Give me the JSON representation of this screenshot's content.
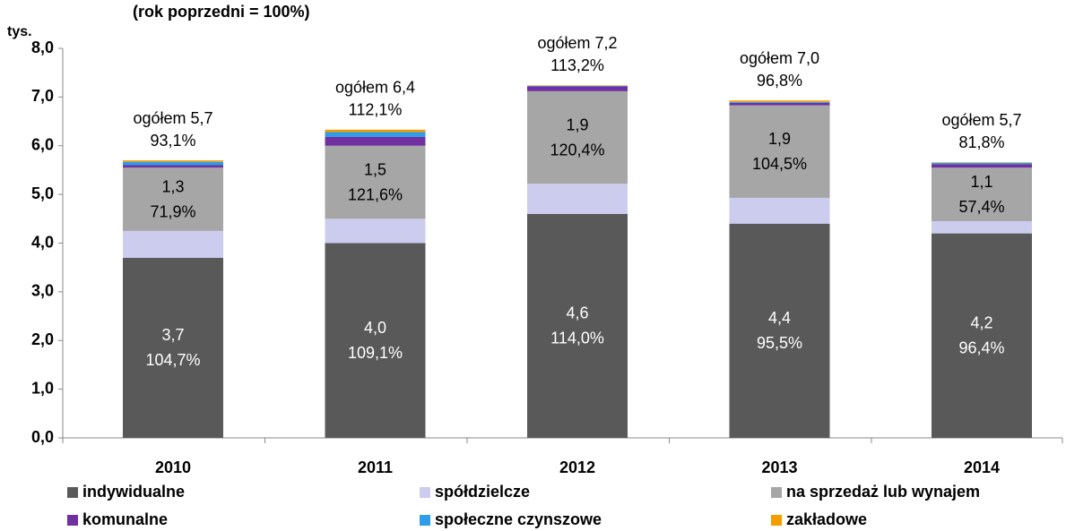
{
  "chart_data": {
    "type": "stacked_bar",
    "subtitle": "(rok poprzedni = 100%)",
    "y_label": "tys.",
    "categories": [
      "2010",
      "2011",
      "2012",
      "2013",
      "2014"
    ],
    "series": [
      {
        "name": "indywidualne",
        "color": "#595959",
        "values": [
          3.7,
          4.0,
          4.6,
          4.4,
          4.2
        ],
        "value_labels": [
          "3,7",
          "4,0",
          "4,6",
          "4,4",
          "4,2"
        ],
        "growth_labels": [
          "104,7%",
          "109,1%",
          "114,0%",
          "95,5%",
          "96,4%"
        ]
      },
      {
        "name": "spółdzielcze",
        "color": "#ccccee",
        "values": [
          0.55,
          0.5,
          0.62,
          0.53,
          0.25
        ]
      },
      {
        "name": "na sprzedaż lub wynajem",
        "color": "#a6a6a6",
        "values": [
          1.3,
          1.5,
          1.9,
          1.9,
          1.1
        ],
        "value_labels": [
          "1,3",
          "1,5",
          "1,9",
          "1,9",
          "1,1"
        ],
        "growth_labels": [
          "71,9%",
          "121,6%",
          "120,4%",
          "104,5%",
          "57,4%"
        ]
      },
      {
        "name": "komunalne",
        "color": "#7030a0",
        "values": [
          0.05,
          0.18,
          0.1,
          0.05,
          0.07
        ]
      },
      {
        "name": "społeczne czynszowe",
        "color": "#2e9ce8",
        "values": [
          0.07,
          0.1,
          0.01,
          0.02,
          0.03
        ]
      },
      {
        "name": "zakładowe",
        "color": "#f59c00",
        "values": [
          0.03,
          0.05,
          0.01,
          0.03,
          0.01
        ]
      }
    ],
    "total_labels": [
      "ogółem 5,7",
      "ogółem 6,4",
      "ogółem 7,2",
      "ogółem 7,0",
      "ogółem 5,7"
    ],
    "total_growth_labels": [
      "93,1%",
      "112,1%",
      "113,2%",
      "96,8%",
      "81,8%"
    ],
    "ylim": [
      0,
      8
    ],
    "yticks": [
      {
        "value": 0,
        "label": "0,0"
      },
      {
        "value": 1,
        "label": "1,0"
      },
      {
        "value": 2,
        "label": "2,0"
      },
      {
        "value": 3,
        "label": "3,0"
      },
      {
        "value": 4,
        "label": "4,0"
      },
      {
        "value": 5,
        "label": "5,0"
      },
      {
        "value": 6,
        "label": "6,0"
      },
      {
        "value": 7,
        "label": "7,0"
      },
      {
        "value": 8,
        "label": "8,0"
      }
    ],
    "legend": "bottom"
  }
}
